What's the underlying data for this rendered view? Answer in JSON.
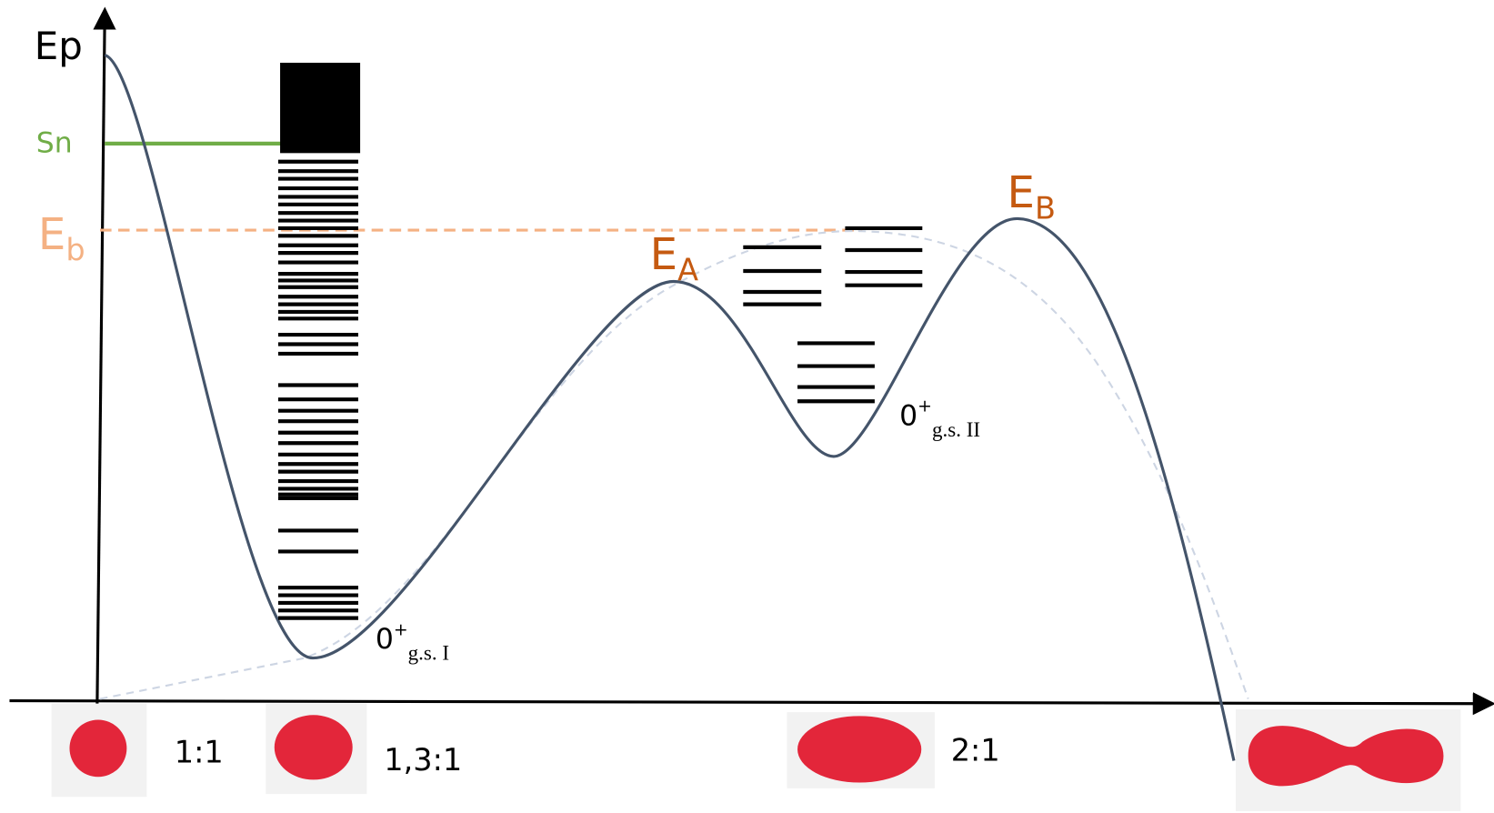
{
  "axis_label": "Ep",
  "neutron_separation": "Sn",
  "barrier_height": {
    "main": "E",
    "sub": "b"
  },
  "barrier_a": {
    "main": "E",
    "sub": "A"
  },
  "barrier_b": {
    "main": "E",
    "sub": "B"
  },
  "ground_state_1": {
    "main": "0",
    "sup": "+",
    "sub": "g.s. I"
  },
  "ground_state_2": {
    "main": "0",
    "sup": "+",
    "sub": "g.s. II"
  },
  "shapes": [
    "1:1",
    "1,3:1",
    "2:1"
  ]
}
